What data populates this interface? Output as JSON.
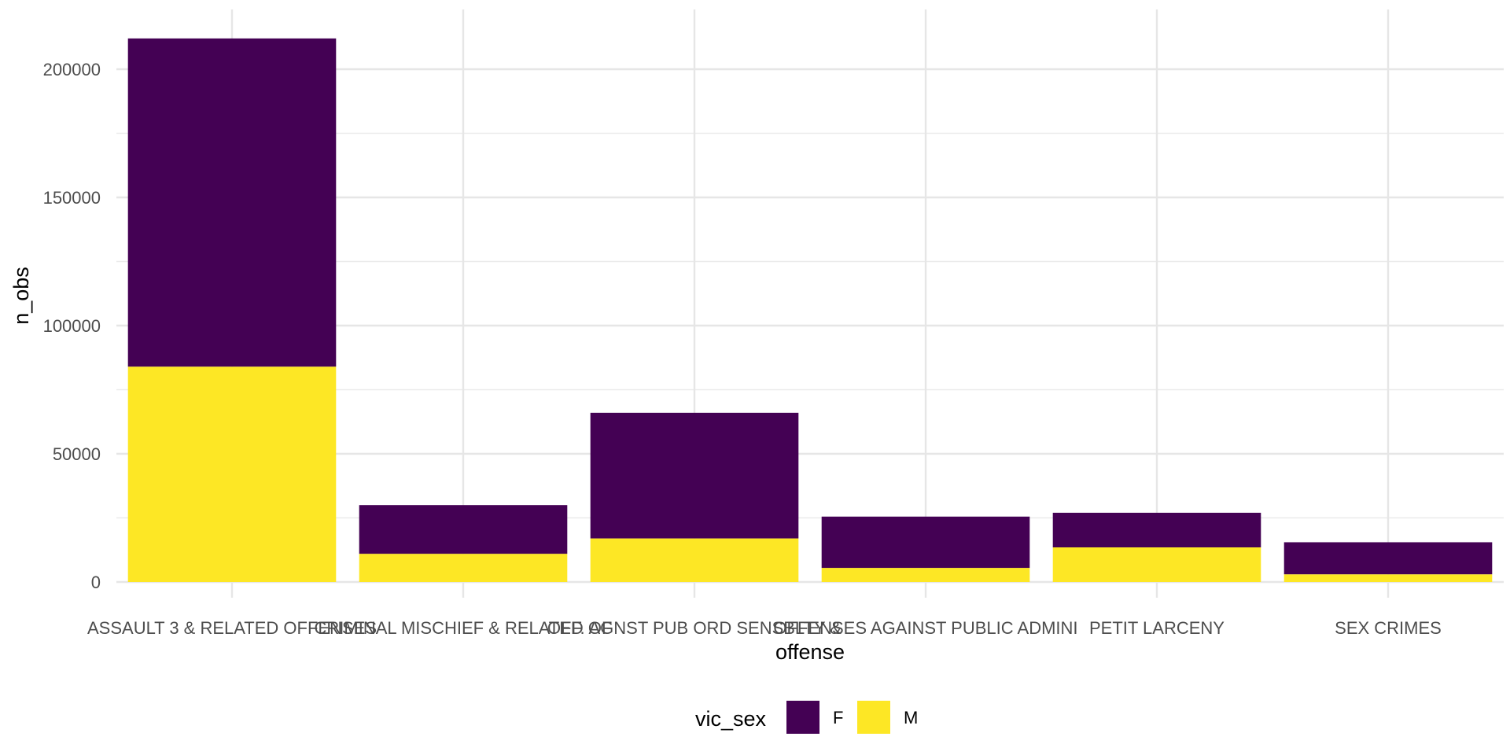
{
  "chart_data": {
    "type": "bar",
    "stacked": true,
    "xlabel": "offense",
    "ylabel": "n_obs",
    "categories": [
      "ASSAULT 3 & RELATED OFFENSES",
      "CRIMINAL MISCHIEF & RELATED OF",
      "OFF. AGNST PUB ORD SENSBLTY &",
      "OFFENSES AGAINST PUBLIC ADMINI",
      "PETIT LARCENY",
      "SEX CRIMES"
    ],
    "series": [
      {
        "name": "M",
        "color": "#FDE725",
        "values": [
          84000,
          11000,
          17000,
          5500,
          13500,
          3000
        ]
      },
      {
        "name": "F",
        "color": "#440154",
        "values": [
          128000,
          19000,
          49000,
          20000,
          13500,
          12500
        ]
      }
    ],
    "ylim": [
      0,
      215000
    ],
    "yticks": [
      0,
      50000,
      100000,
      150000,
      200000
    ],
    "ytick_labels": [
      "0",
      "50000",
      "100000",
      "150000",
      "200000"
    ],
    "grid": true,
    "legend": {
      "title": "vic_sex",
      "placement": "bottom",
      "entries": [
        {
          "label": "F",
          "color": "#440154"
        },
        {
          "label": "M",
          "color": "#FDE725"
        }
      ]
    }
  }
}
